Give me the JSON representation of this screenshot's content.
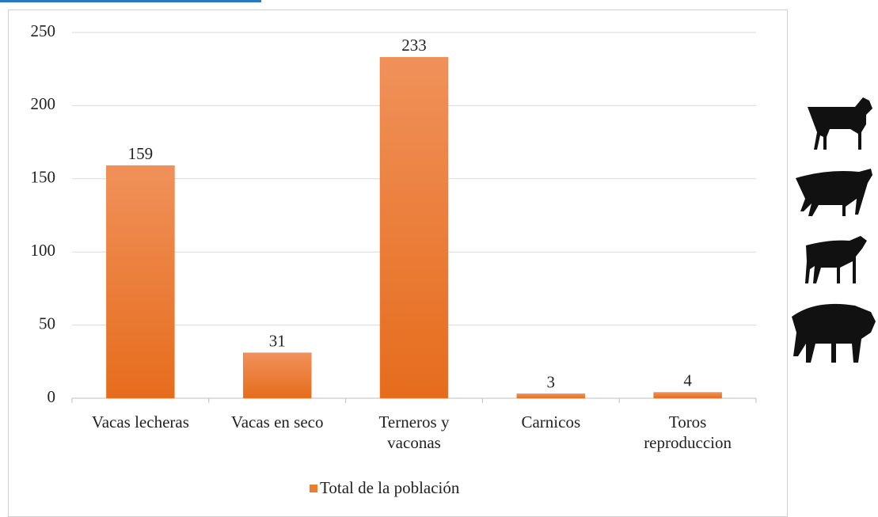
{
  "chart_data": {
    "type": "bar",
    "categories": [
      "Vacas lecheras",
      "Vacas en seco",
      "Terneros y vaconas",
      "Carnicos",
      "Toros reproduccion"
    ],
    "series": [
      {
        "name": "Total de la población",
        "color": "#ed7d31",
        "values": [
          159,
          31,
          233,
          3,
          4
        ]
      }
    ],
    "ylim": [
      0,
      250
    ],
    "yticks": [
      0,
      50,
      100,
      150,
      200,
      250
    ],
    "grid": true,
    "legend": "bottom"
  }
}
